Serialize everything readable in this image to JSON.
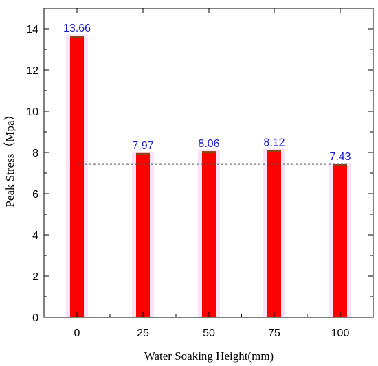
{
  "chart_data": {
    "type": "bar",
    "title": "",
    "xlabel": "Water Soaking Height(mm)",
    "ylabel": "Peak Stress（Mpa）",
    "categories": [
      "0",
      "25",
      "50",
      "75",
      "100"
    ],
    "values": [
      13.66,
      7.97,
      8.06,
      8.12,
      7.43
    ],
    "data_labels": [
      "13.66",
      "7.97",
      "8.06",
      "8.12",
      "7.43"
    ],
    "ylim": [
      0,
      15
    ],
    "yticks": [
      0,
      2,
      4,
      6,
      8,
      10,
      12,
      14
    ],
    "reference_line": 7.43,
    "grid": false,
    "legend": "none",
    "colors": {
      "bar_fill": "#ff0000",
      "bar_top": "#8b4513",
      "bar_halo": "#f7d0f0",
      "data_label": "#1a1acc",
      "reference_line": "#555555"
    }
  }
}
